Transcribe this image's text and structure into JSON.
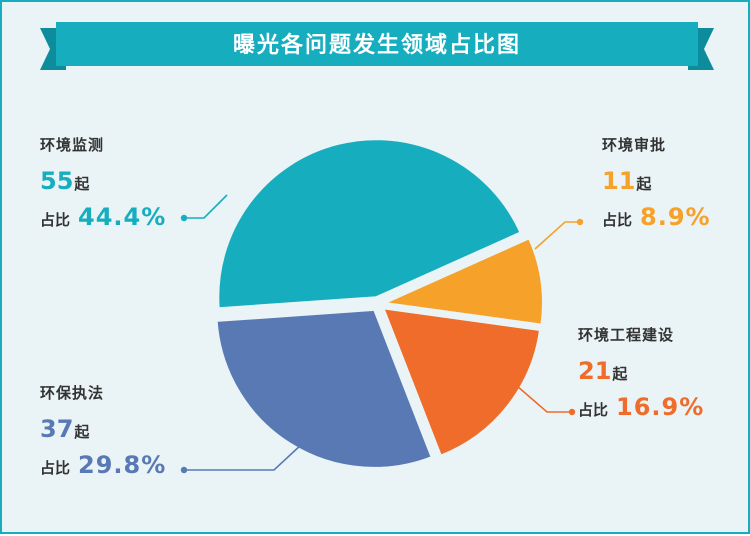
{
  "title": "曝光各问题发生领域占比图",
  "colors": {
    "background": "#eaf4f6",
    "banner": "#16aebf",
    "banner_dark": "#0d8d9c"
  },
  "count_unit": "起",
  "pct_prefix": "占比",
  "chart_data": {
    "type": "pie",
    "title": "曝光各问题发生领域占比图",
    "slices": [
      {
        "label": "环境监测",
        "count": 55,
        "percent": 44.4,
        "percent_label": "44.4%",
        "color": "#16aebf"
      },
      {
        "label": "环境审批",
        "count": 11,
        "percent": 8.9,
        "percent_label": "8.9%",
        "color": "#f5a12a"
      },
      {
        "label": "环境工程建设",
        "count": 21,
        "percent": 16.9,
        "percent_label": "16.9%",
        "color": "#ef6c2a"
      },
      {
        "label": "环保执法",
        "count": 37,
        "percent": 29.8,
        "percent_label": "29.8%",
        "color": "#5879b4"
      }
    ]
  }
}
